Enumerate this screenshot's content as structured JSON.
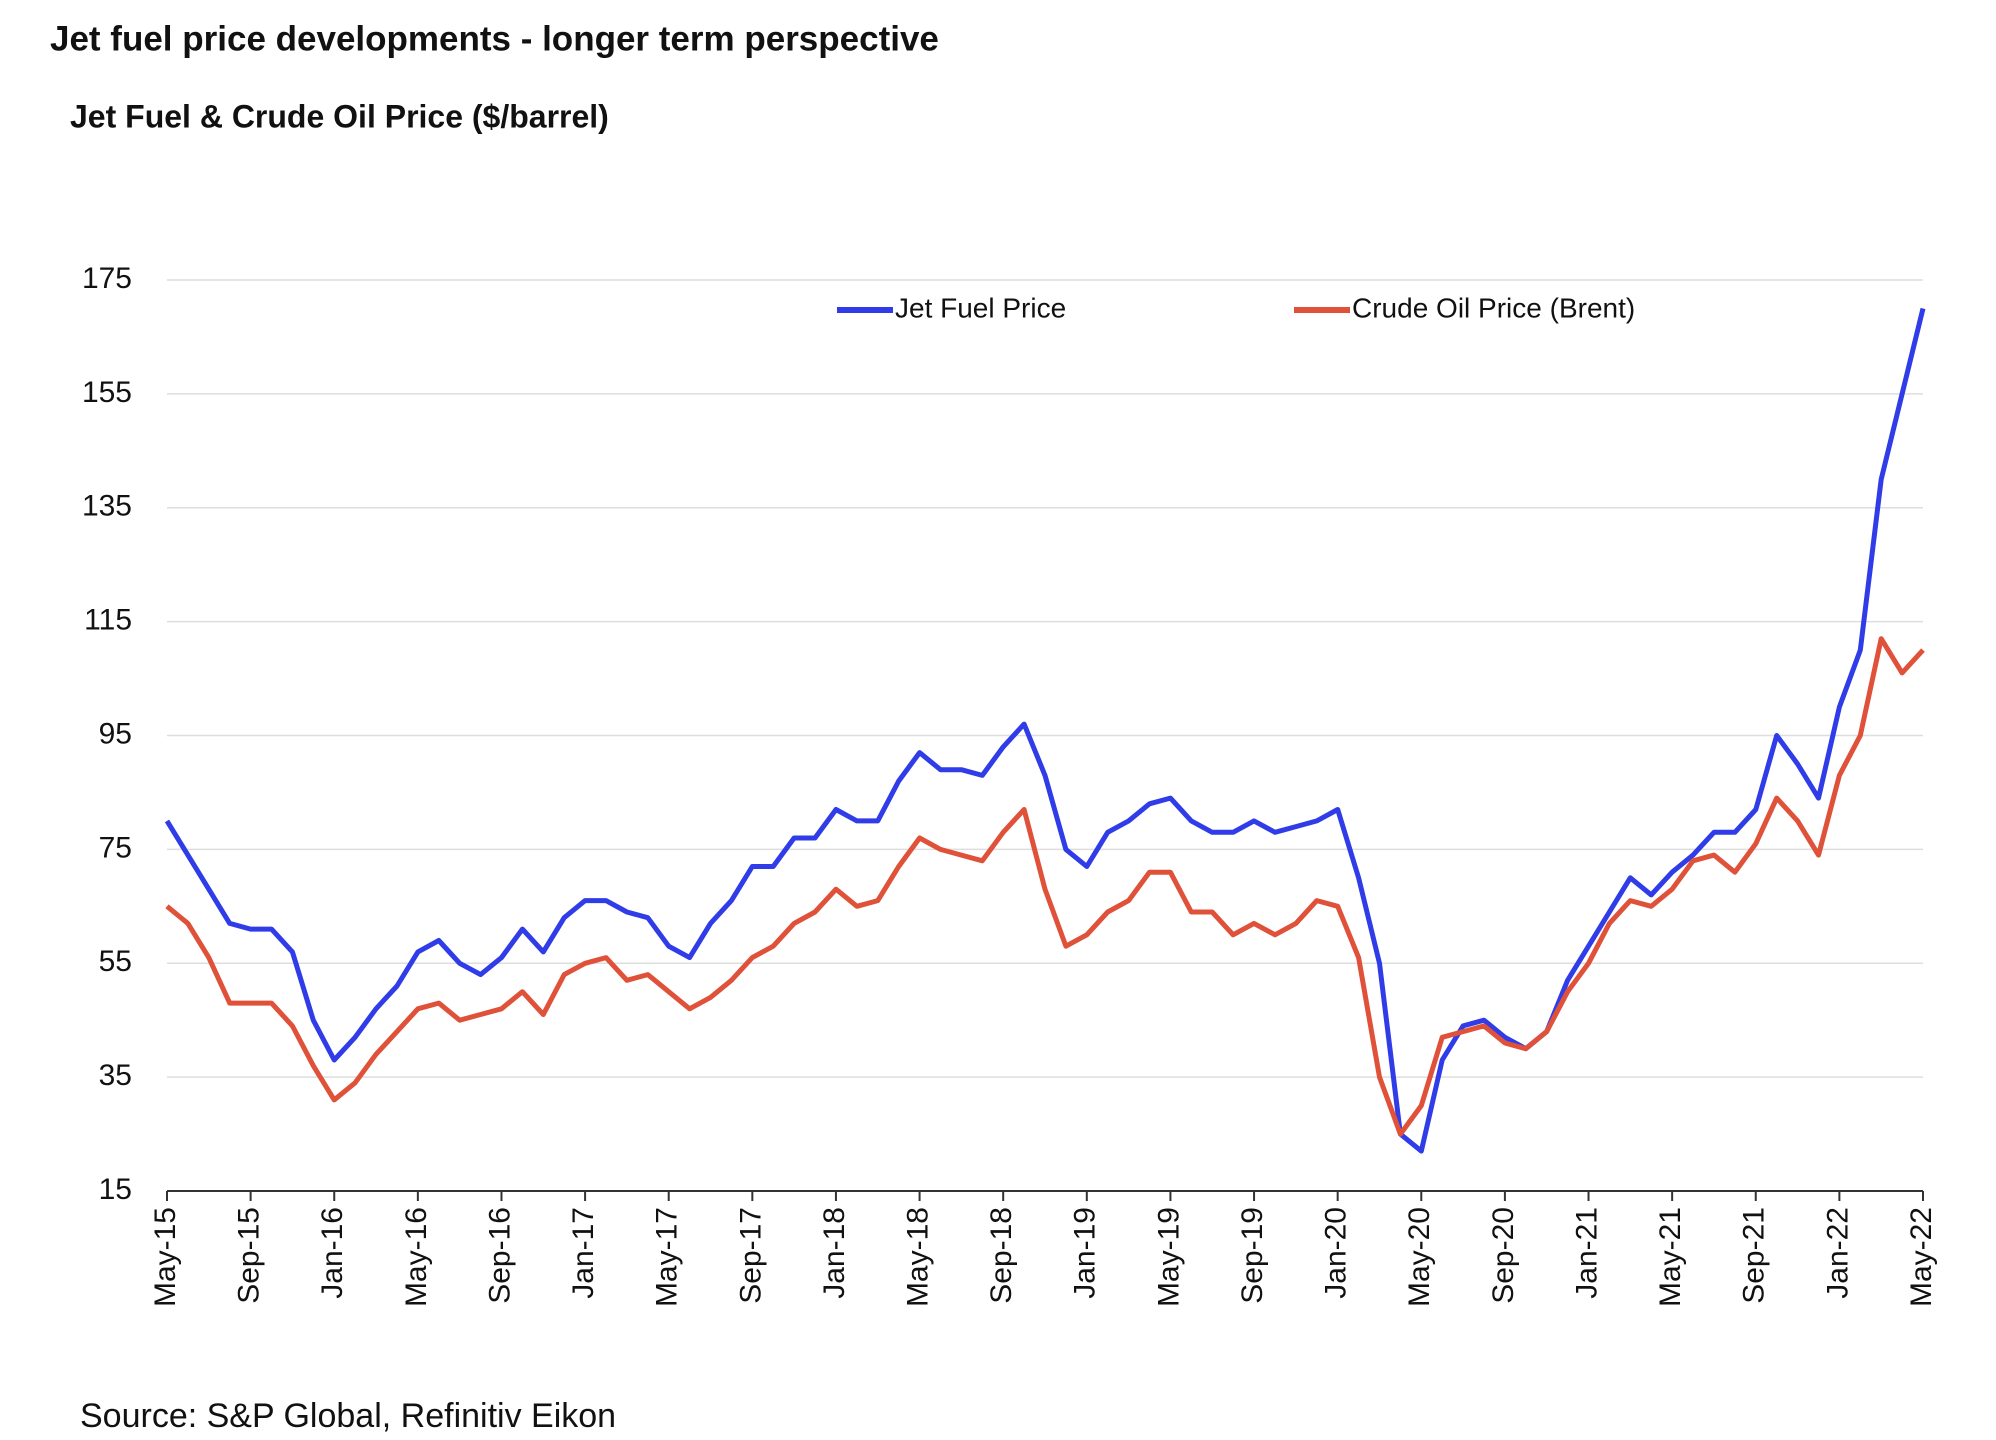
{
  "title": "Jet fuel price developments - longer term perspective",
  "source": "Source: S&P Global, Refinitiv Eikon",
  "chart_data": {
    "type": "line",
    "title": "Jet Fuel & Crude Oil Price ($/barrel)",
    "categories": [
      "May-15",
      null,
      null,
      null,
      "Sep-15",
      null,
      null,
      null,
      "Jan-16",
      null,
      null,
      null,
      "May-16",
      null,
      null,
      null,
      "Sep-16",
      null,
      null,
      null,
      "Jan-17",
      null,
      null,
      null,
      "May-17",
      null,
      null,
      null,
      "Sep-17",
      null,
      null,
      null,
      "Jan-18",
      null,
      null,
      null,
      "May-18",
      null,
      null,
      null,
      "Sep-18",
      null,
      null,
      null,
      "Jan-19",
      null,
      null,
      null,
      "May-19",
      null,
      null,
      null,
      "Sep-19",
      null,
      null,
      null,
      "Jan-20",
      null,
      null,
      null,
      "May-20",
      null,
      null,
      null,
      "Sep-20",
      null,
      null,
      null,
      "Jan-21",
      null,
      null,
      null,
      "May-21",
      null,
      null,
      null,
      "Sep-21",
      null,
      null,
      null,
      "Jan-22",
      null,
      null,
      null,
      "May-22"
    ],
    "series": [
      {
        "name": "Jet Fuel Price",
        "color": "#2f3ce8",
        "values": [
          80,
          74,
          68,
          62,
          61,
          61,
          57,
          45,
          38,
          42,
          47,
          51,
          57,
          59,
          55,
          53,
          56,
          61,
          57,
          63,
          66,
          66,
          64,
          63,
          58,
          56,
          62,
          66,
          72,
          72,
          77,
          77,
          82,
          80,
          80,
          87,
          92,
          89,
          89,
          88,
          93,
          97,
          88,
          75,
          72,
          78,
          80,
          83,
          84,
          80,
          78,
          78,
          80,
          78,
          79,
          80,
          82,
          70,
          55,
          25,
          22,
          38,
          44,
          45,
          42,
          40,
          43,
          52,
          58,
          64,
          70,
          67,
          71,
          74,
          78,
          78,
          82,
          95,
          90,
          84,
          100,
          110,
          140,
          155,
          170
        ]
      },
      {
        "name": "Crude Oil Price (Brent)",
        "color": "#e0513a",
        "values": [
          65,
          62,
          56,
          48,
          48,
          48,
          44,
          37,
          31,
          34,
          39,
          43,
          47,
          48,
          45,
          46,
          47,
          50,
          46,
          53,
          55,
          56,
          52,
          53,
          50,
          47,
          49,
          52,
          56,
          58,
          62,
          64,
          68,
          65,
          66,
          72,
          77,
          75,
          74,
          73,
          78,
          82,
          68,
          58,
          60,
          64,
          66,
          71,
          71,
          64,
          64,
          60,
          62,
          60,
          62,
          66,
          65,
          56,
          35,
          25,
          30,
          42,
          43,
          44,
          41,
          40,
          43,
          50,
          55,
          62,
          66,
          65,
          68,
          73,
          74,
          71,
          76,
          84,
          80,
          74,
          88,
          95,
          112,
          106,
          110
        ]
      }
    ],
    "ylim": [
      15,
      175
    ],
    "yticks": [
      15,
      35,
      55,
      75,
      95,
      115,
      135,
      155,
      175
    ],
    "grid": true,
    "legend": "top"
  }
}
